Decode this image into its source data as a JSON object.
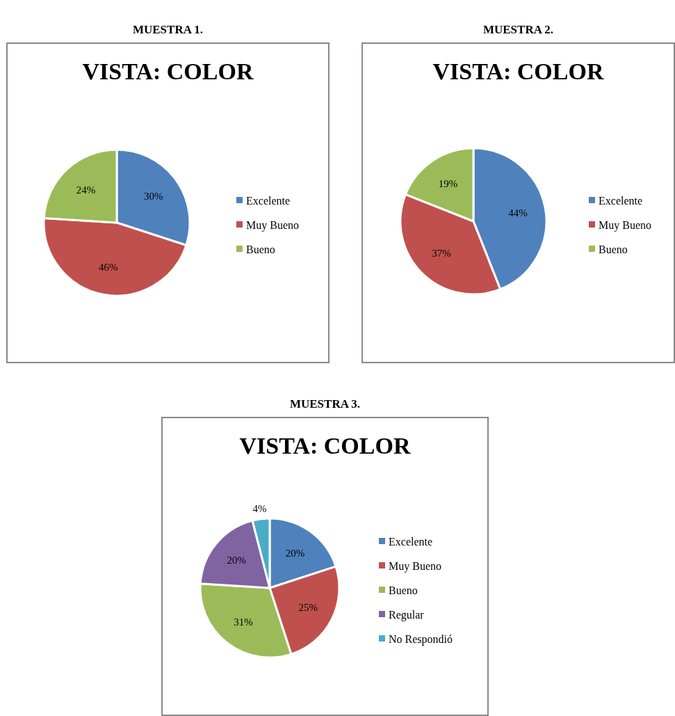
{
  "chart_data": [
    {
      "type": "pie",
      "title": "MUESTRA 1.",
      "subtitle": "VISTA: COLOR",
      "categories": [
        "Excelente",
        "Muy Bueno",
        "Bueno"
      ],
      "values": [
        30,
        46,
        24
      ],
      "value_labels": [
        "30%",
        "46%",
        "24%"
      ],
      "data_labels": true,
      "colors": [
        "#4f81bd",
        "#c0504d",
        "#9bbb59"
      ],
      "legend": "right"
    },
    {
      "type": "pie",
      "title": "MUESTRA 2.",
      "subtitle": "VISTA: COLOR",
      "categories": [
        "Excelente",
        "Muy Bueno",
        "Bueno"
      ],
      "values": [
        44,
        37,
        19
      ],
      "value_labels": [
        "44%",
        "37%",
        "19%"
      ],
      "data_labels": true,
      "colors": [
        "#4f81bd",
        "#c0504d",
        "#9bbb59"
      ],
      "legend": "right"
    },
    {
      "type": "pie",
      "title": "MUESTRA 3.",
      "subtitle": "VISTA: COLOR",
      "categories": [
        "Excelente",
        "Muy Bueno",
        "Bueno",
        "Regular",
        "No Respondió"
      ],
      "values": [
        20,
        25,
        31,
        20,
        4
      ],
      "value_labels": [
        "20%",
        "25%",
        "31%",
        "20%",
        "4%"
      ],
      "data_labels": true,
      "colors": [
        "#4f81bd",
        "#c0504d",
        "#9bbb59",
        "#8064a2",
        "#4bacc6"
      ],
      "legend": "right"
    }
  ]
}
